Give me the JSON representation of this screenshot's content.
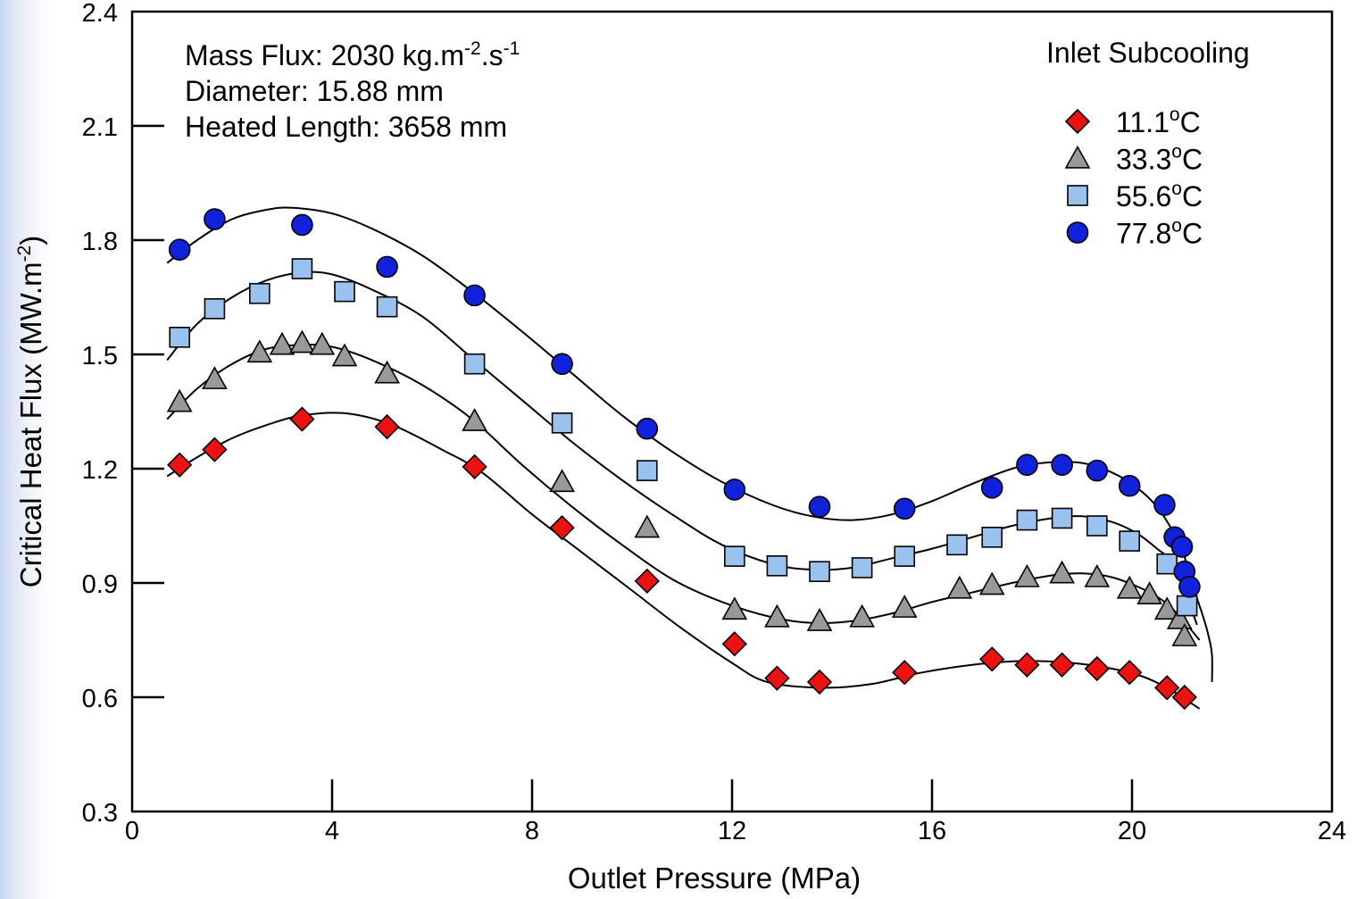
{
  "chart_data": {
    "type": "scatter",
    "xlabel": "Outlet Pressure (MPa)",
    "ylabel": "Critical Heat Flux (MW.m",
    "ylabel_sup": "-2",
    "ylabel_tail": ")",
    "xlim": [
      0,
      24
    ],
    "ylim": [
      0.3,
      2.4
    ],
    "xticks": [
      0,
      4,
      8,
      12,
      16,
      20,
      24
    ],
    "yticks": [
      0.3,
      0.6,
      0.9,
      1.2,
      1.5,
      1.8,
      2.1,
      2.4
    ],
    "xtick_labels": [
      "0",
      "4",
      "8",
      "12",
      "16",
      "20",
      "24"
    ],
    "ytick_labels": [
      "0.3",
      "0.6",
      "0.9",
      "1.2",
      "1.5",
      "1.8",
      "2.1",
      "2.4"
    ],
    "grid": false,
    "legend_position": "top-right",
    "annotations": {
      "mass_flux": {
        "text": "Mass Flux: 2030 kg.m",
        "sup1": "-2",
        "mid": ".s",
        "sup2": "-1"
      },
      "diameter": "Diameter: 15.88 mm",
      "heated_length": "Heated Length: 3658 mm"
    },
    "legend_title": "Inlet Subcooling",
    "series": [
      {
        "name": "11.1°C",
        "name_main": "11.1",
        "name_sup": "o",
        "name_unit": "C",
        "marker": "diamond",
        "color": "#ee1111",
        "points": [
          [
            0.95,
            1.21
          ],
          [
            1.65,
            1.25
          ],
          [
            3.4,
            1.33
          ],
          [
            5.1,
            1.31
          ],
          [
            6.85,
            1.205
          ],
          [
            8.6,
            1.045
          ],
          [
            10.3,
            0.905
          ],
          [
            12.05,
            0.74
          ],
          [
            12.9,
            0.65
          ],
          [
            13.75,
            0.64
          ],
          [
            15.45,
            0.665
          ],
          [
            17.2,
            0.7
          ],
          [
            17.9,
            0.685
          ],
          [
            18.6,
            0.685
          ],
          [
            19.3,
            0.675
          ],
          [
            19.95,
            0.665
          ],
          [
            20.7,
            0.625
          ],
          [
            21.05,
            0.6
          ]
        ],
        "fit": [
          [
            0.7,
            1.18
          ],
          [
            1.3,
            1.23
          ],
          [
            2.0,
            1.28
          ],
          [
            2.7,
            1.315
          ],
          [
            3.4,
            1.34
          ],
          [
            4.3,
            1.345
          ],
          [
            5.2,
            1.315
          ],
          [
            6.2,
            1.25
          ],
          [
            7.0,
            1.19
          ],
          [
            8.0,
            1.08
          ],
          [
            9.0,
            0.98
          ],
          [
            10.0,
            0.88
          ],
          [
            11.0,
            0.78
          ],
          [
            12.0,
            0.69
          ],
          [
            12.7,
            0.64
          ],
          [
            13.8,
            0.625
          ],
          [
            14.8,
            0.635
          ],
          [
            15.8,
            0.665
          ],
          [
            16.8,
            0.685
          ],
          [
            17.8,
            0.695
          ],
          [
            18.8,
            0.69
          ],
          [
            19.6,
            0.675
          ],
          [
            20.2,
            0.655
          ],
          [
            20.7,
            0.625
          ],
          [
            21.0,
            0.6
          ],
          [
            21.35,
            0.57
          ]
        ]
      },
      {
        "name": "33.3°C",
        "name_main": "33.3",
        "name_sup": "o",
        "name_unit": "C",
        "marker": "triangle",
        "color": "#999999",
        "points": [
          [
            0.95,
            1.375
          ],
          [
            1.65,
            1.435
          ],
          [
            2.55,
            1.505
          ],
          [
            3.0,
            1.525
          ],
          [
            3.4,
            1.53
          ],
          [
            3.8,
            1.525
          ],
          [
            4.25,
            1.495
          ],
          [
            5.1,
            1.45
          ],
          [
            6.85,
            1.325
          ],
          [
            8.6,
            1.165
          ],
          [
            10.3,
            1.045
          ],
          [
            12.05,
            0.83
          ],
          [
            12.9,
            0.81
          ],
          [
            13.75,
            0.8
          ],
          [
            14.6,
            0.81
          ],
          [
            15.45,
            0.835
          ],
          [
            16.55,
            0.885
          ],
          [
            17.2,
            0.895
          ],
          [
            17.9,
            0.915
          ],
          [
            18.6,
            0.925
          ],
          [
            19.3,
            0.915
          ],
          [
            19.95,
            0.885
          ],
          [
            20.35,
            0.87
          ],
          [
            20.7,
            0.83
          ],
          [
            20.95,
            0.805
          ],
          [
            21.05,
            0.76
          ]
        ],
        "fit": [
          [
            0.7,
            1.33
          ],
          [
            1.3,
            1.41
          ],
          [
            2.0,
            1.475
          ],
          [
            2.7,
            1.515
          ],
          [
            3.4,
            1.525
          ],
          [
            4.0,
            1.52
          ],
          [
            4.8,
            1.485
          ],
          [
            5.8,
            1.42
          ],
          [
            6.8,
            1.33
          ],
          [
            7.8,
            1.21
          ],
          [
            8.8,
            1.1
          ],
          [
            9.8,
            1.0
          ],
          [
            10.8,
            0.91
          ],
          [
            11.8,
            0.85
          ],
          [
            12.8,
            0.81
          ],
          [
            13.6,
            0.795
          ],
          [
            14.4,
            0.8
          ],
          [
            15.2,
            0.82
          ],
          [
            16.0,
            0.85
          ],
          [
            16.8,
            0.875
          ],
          [
            17.6,
            0.9
          ],
          [
            18.4,
            0.92
          ],
          [
            19.0,
            0.925
          ],
          [
            19.6,
            0.915
          ],
          [
            20.2,
            0.885
          ],
          [
            20.6,
            0.855
          ],
          [
            20.9,
            0.82
          ],
          [
            21.1,
            0.79
          ],
          [
            21.35,
            0.75
          ]
        ]
      },
      {
        "name": "55.6°C",
        "name_main": "55.6",
        "name_sup": "o",
        "name_unit": "C",
        "marker": "square",
        "color": "#99c2ee",
        "points": [
          [
            0.95,
            1.545
          ],
          [
            1.65,
            1.62
          ],
          [
            2.55,
            1.66
          ],
          [
            3.4,
            1.725
          ],
          [
            4.25,
            1.665
          ],
          [
            5.1,
            1.625
          ],
          [
            6.85,
            1.475
          ],
          [
            8.6,
            1.32
          ],
          [
            10.3,
            1.195
          ],
          [
            12.05,
            0.97
          ],
          [
            12.9,
            0.945
          ],
          [
            13.75,
            0.93
          ],
          [
            14.6,
            0.94
          ],
          [
            15.45,
            0.97
          ],
          [
            16.5,
            1.0
          ],
          [
            17.2,
            1.02
          ],
          [
            17.9,
            1.065
          ],
          [
            18.6,
            1.07
          ],
          [
            19.3,
            1.05
          ],
          [
            19.95,
            1.01
          ],
          [
            20.7,
            0.95
          ],
          [
            21.1,
            0.84
          ]
        ],
        "fit": [
          [
            0.7,
            1.485
          ],
          [
            1.3,
            1.58
          ],
          [
            2.0,
            1.65
          ],
          [
            2.7,
            1.695
          ],
          [
            3.4,
            1.715
          ],
          [
            4.0,
            1.71
          ],
          [
            4.8,
            1.67
          ],
          [
            5.8,
            1.6
          ],
          [
            6.8,
            1.49
          ],
          [
            7.8,
            1.38
          ],
          [
            8.8,
            1.27
          ],
          [
            9.8,
            1.17
          ],
          [
            10.8,
            1.08
          ],
          [
            11.8,
            1.0
          ],
          [
            12.8,
            0.95
          ],
          [
            13.6,
            0.935
          ],
          [
            14.4,
            0.94
          ],
          [
            15.2,
            0.965
          ],
          [
            16.0,
            0.99
          ],
          [
            16.8,
            1.02
          ],
          [
            17.6,
            1.05
          ],
          [
            18.4,
            1.07
          ],
          [
            19.0,
            1.075
          ],
          [
            19.6,
            1.06
          ],
          [
            20.1,
            1.03
          ],
          [
            20.5,
            0.99
          ],
          [
            20.8,
            0.955
          ],
          [
            21.05,
            0.88
          ],
          [
            21.3,
            0.79
          ]
        ]
      },
      {
        "name": "77.8°C",
        "name_main": "77.8",
        "name_sup": "o",
        "name_unit": "C",
        "marker": "circle",
        "color": "#1122dd",
        "points": [
          [
            0.95,
            1.775
          ],
          [
            1.65,
            1.855
          ],
          [
            3.4,
            1.84
          ],
          [
            5.1,
            1.73
          ],
          [
            6.85,
            1.655
          ],
          [
            8.6,
            1.475
          ],
          [
            10.3,
            1.305
          ],
          [
            12.05,
            1.145
          ],
          [
            13.75,
            1.1
          ],
          [
            15.45,
            1.095
          ],
          [
            17.2,
            1.15
          ],
          [
            17.9,
            1.21
          ],
          [
            18.6,
            1.21
          ],
          [
            19.3,
            1.195
          ],
          [
            19.95,
            1.155
          ],
          [
            20.65,
            1.105
          ],
          [
            20.85,
            1.02
          ],
          [
            21.0,
            0.995
          ],
          [
            21.05,
            0.93
          ],
          [
            21.15,
            0.89
          ]
        ],
        "fit": [
          [
            0.7,
            1.74
          ],
          [
            1.3,
            1.8
          ],
          [
            2.0,
            1.855
          ],
          [
            2.7,
            1.88
          ],
          [
            3.2,
            1.885
          ],
          [
            4.0,
            1.87
          ],
          [
            4.8,
            1.83
          ],
          [
            5.8,
            1.76
          ],
          [
            6.8,
            1.665
          ],
          [
            7.8,
            1.56
          ],
          [
            8.8,
            1.45
          ],
          [
            9.8,
            1.34
          ],
          [
            10.8,
            1.245
          ],
          [
            11.8,
            1.165
          ],
          [
            12.8,
            1.105
          ],
          [
            13.6,
            1.075
          ],
          [
            14.4,
            1.065
          ],
          [
            15.2,
            1.08
          ],
          [
            16.0,
            1.115
          ],
          [
            16.8,
            1.16
          ],
          [
            17.6,
            1.2
          ],
          [
            18.2,
            1.215
          ],
          [
            19.0,
            1.215
          ],
          [
            19.6,
            1.19
          ],
          [
            20.1,
            1.15
          ],
          [
            20.5,
            1.1
          ],
          [
            20.8,
            1.04
          ],
          [
            21.0,
            0.99
          ],
          [
            21.15,
            0.92
          ],
          [
            21.3,
            0.86
          ],
          [
            21.45,
            0.8
          ],
          [
            21.55,
            0.75
          ],
          [
            21.6,
            0.71
          ],
          [
            21.6,
            0.64
          ]
        ]
      }
    ]
  }
}
